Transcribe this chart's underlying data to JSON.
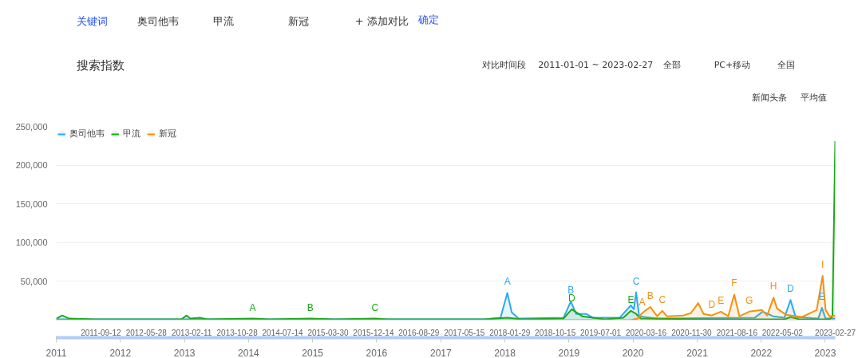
{
  "chart_data": {
    "type": "area",
    "title": "搜索指数",
    "xlim": [
      "2011-01-01",
      "2023-02-27"
    ],
    "xticks": [
      "2011-09-12",
      "2012-05-28",
      "2013-02-11",
      "2013-10-28",
      "2014-07-14",
      "2015-03-30",
      "2015-12-14",
      "2016-08-29",
      "2017-05-15",
      "2018-01-29",
      "2018-10-15",
      "2019-07-01",
      "2020-03-16",
      "2020-11-30",
      "2021-08-16",
      "2022-05-02",
      "2023-02-27"
    ],
    "x2lim": [
      "2011-01-01",
      "2023-02-27"
    ],
    "x2ticks": [
      "2011",
      "2012",
      "2013",
      "2014",
      "2015",
      "2016",
      "2017",
      "2018",
      "2019",
      "2020",
      "2021",
      "2022",
      "2023"
    ],
    "ylim": [
      0,
      250000
    ],
    "yticks": [
      {
        "value": 50000,
        "label": "50,000"
      },
      {
        "value": 100000,
        "label": "100,000"
      },
      {
        "value": 150000,
        "label": "150,000"
      },
      {
        "value": 200000,
        "label": "200,000"
      },
      {
        "value": 250000,
        "label": "250,000"
      }
    ],
    "grid": "y",
    "legend": "top left",
    "marker": "none",
    "line_style": "solid",
    "series": [
      {
        "name": "奥司他韦",
        "color": "#2fa8f0",
        "x": [
          "2011-01-01",
          "2017-09-08",
          "2017-12-07",
          "2018-01-15",
          "2018-02-09",
          "2018-03-20",
          "2018-12-01",
          "2019-01-12",
          "2019-02-11",
          "2019-04-08",
          "2019-05-21",
          "2019-10-17",
          "2019-12-20",
          "2020-01-06",
          "2020-01-19",
          "2020-02-05",
          "2020-05-18",
          "2021-11-24",
          "2022-01-10",
          "2022-03-11",
          "2022-05-13",
          "2022-06-17",
          "2022-07-16",
          "2022-11-22",
          "2022-12-13",
          "2023-01-03",
          "2023-02-27"
        ],
        "values": [
          1000,
          1000,
          3000,
          35000,
          10000,
          2000,
          3000,
          24000,
          8000,
          8000,
          3000,
          3000,
          19000,
          14000,
          36000,
          5000,
          2000,
          3000,
          11000,
          5000,
          3000,
          26000,
          4000,
          2000,
          16000,
          2000,
          2000
        ]
      },
      {
        "name": "甲流",
        "color": "#1aa81a",
        "x": [
          "2011-01-01",
          "2011-02-04",
          "2011-03-15",
          "2011-08-11",
          "2012-07-18",
          "2012-12-14",
          "2013-01-13",
          "2013-02-03",
          "2013-03-31",
          "2013-05-13",
          "2014-01-24",
          "2014-05-01",
          "2014-12-19",
          "2015-05-08",
          "2015-12-23",
          "2016-03-02",
          "2017-09-08",
          "2018-01-15",
          "2018-04-10",
          "2018-12-01",
          "2019-01-17",
          "2019-03-18",
          "2019-07-24",
          "2019-11-07",
          "2019-12-20",
          "2020-01-19",
          "2020-02-14",
          "2021-03-12",
          "2022-05-13",
          "2022-06-17",
          "2022-08-07",
          "2023-01-25",
          "2023-02-11",
          "2023-02-27"
        ],
        "values": [
          2000,
          6000,
          2000,
          1000,
          1000,
          1000,
          6000,
          2000,
          3000,
          1000,
          2000,
          1000,
          2000,
          1000,
          2000,
          1000,
          1000,
          3000,
          1000,
          2000,
          14000,
          5000,
          1000,
          3000,
          12000,
          8000,
          2000,
          1000,
          1000,
          4000,
          1000,
          1000,
          5000,
          231000
        ]
      },
      {
        "name": "新冠",
        "color": "#f5900f",
        "x": [
          "2011-01-01",
          "2019-12-20",
          "2020-01-28",
          "2020-02-22",
          "2020-04-09",
          "2020-05-18",
          "2020-06-16",
          "2020-07-12",
          "2020-10-14",
          "2020-11-26",
          "2021-01-07",
          "2021-02-06",
          "2021-03-25",
          "2021-05-16",
          "2021-06-27",
          "2021-07-31",
          "2021-08-30",
          "2021-10-25",
          "2022-01-05",
          "2022-02-04",
          "2022-03-12",
          "2022-04-01",
          "2022-05-22",
          "2022-08-20",
          "2022-11-13",
          "2022-12-17",
          "2023-01-03",
          "2023-01-25",
          "2023-02-27"
        ],
        "values": [
          0,
          0,
          2000,
          9000,
          17000,
          5000,
          12000,
          5000,
          6000,
          9000,
          22000,
          8000,
          6000,
          11000,
          5000,
          33000,
          5000,
          11000,
          13000,
          6000,
          29000,
          15000,
          7000,
          4000,
          13000,
          57000,
          13000,
          5000,
          6000
        ]
      }
    ],
    "annotations": [
      "关键词",
      "+ 添加对比",
      "确定",
      "对比时间段",
      "2011-01-01 ~ 2023-02-27",
      "全部",
      "PC+移动",
      "全国",
      "新闻头条",
      "平均值",
      {
        "text": "A",
        "x": "2014-01-24",
        "y": 2000
      },
      {
        "text": "B",
        "x": "2014-12-19",
        "y": 2000
      },
      {
        "text": "C",
        "x": "2015-12-23",
        "y": 2000
      },
      {
        "text": "A",
        "x": "2018-01-15",
        "y": 35000
      },
      {
        "text": "B",
        "x": "2019-01-12",
        "y": 24000
      },
      {
        "text": "D",
        "x": "2019-01-17",
        "y": 14000
      },
      {
        "text": "E",
        "x": "2019-12-20",
        "y": 12000
      },
      {
        "text": "C",
        "x": "2020-01-19",
        "y": 36000
      },
      {
        "text": "A",
        "x": "2020-02-22",
        "y": 9000
      },
      {
        "text": "B",
        "x": "2020-04-09",
        "y": 17000
      },
      {
        "text": "C",
        "x": "2020-06-16",
        "y": 12000
      },
      {
        "text": "D",
        "x": "2021-03-25",
        "y": 6000
      },
      {
        "text": "E",
        "x": "2021-05-16",
        "y": 11000
      },
      {
        "text": "F",
        "x": "2021-07-31",
        "y": 33000
      },
      {
        "text": "G",
        "x": "2021-10-25",
        "y": 11000
      },
      {
        "text": "H",
        "x": "2022-03-12",
        "y": 29000
      },
      {
        "text": "D",
        "x": "2022-06-17",
        "y": 26000
      },
      {
        "text": "E",
        "x": "2022-12-13",
        "y": 16000
      },
      {
        "text": "I",
        "x": "2022-12-17",
        "y": 57000
      }
    ]
  }
}
